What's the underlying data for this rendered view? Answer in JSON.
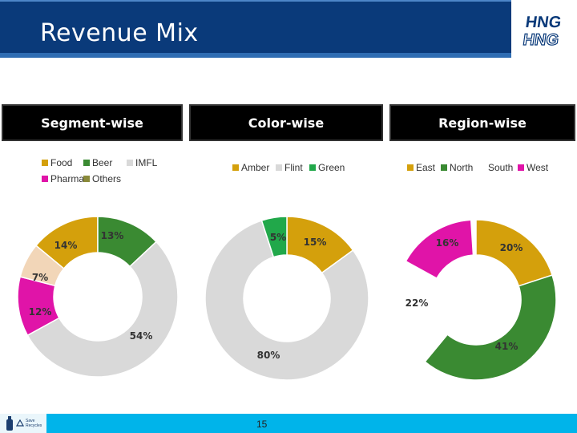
{
  "header": {
    "title": "Revenue Mix",
    "logo_text_top": "HNG",
    "logo_text_bottom": "HNG"
  },
  "sections": {
    "segment": "Segment-wise",
    "color": "Color-wise",
    "region": "Region-wise"
  },
  "colors": {
    "title_bar": "#0a3a7a",
    "footer": "#00b4ea",
    "gold": "#d4a00c",
    "green": "#3a8a32",
    "grey": "#d9d9d9",
    "pink": "#e014a8",
    "peach": "#f2d6b8",
    "olive": "#8a8a3a"
  },
  "chart_data": [
    {
      "type": "pie",
      "style": "donut",
      "categories": [
        "Food",
        "Beer",
        "IMFL",
        "Pharma",
        "Others"
      ],
      "values": [
        14,
        13,
        54,
        12,
        7
      ],
      "labels": [
        "14%",
        "13%",
        "54%",
        "12%",
        "7%"
      ],
      "colors": [
        "#d4a00c",
        "#3a8a32",
        "#d9d9d9",
        "#e014a8",
        "#f2d6b8"
      ],
      "legend_colors": [
        "#d4a00c",
        "#3a8a32",
        "#d9d9d9",
        "#e014a8",
        "#8a8a3a"
      ],
      "legend": "top"
    },
    {
      "type": "pie",
      "style": "donut",
      "categories": [
        "Amber",
        "Flint",
        "Green"
      ],
      "values": [
        15,
        80,
        5
      ],
      "labels": [
        "15%",
        "80%",
        "5%"
      ],
      "colors": [
        "#d4a00c",
        "#d9d9d9",
        "#21a84a"
      ],
      "legend": "top"
    },
    {
      "type": "pie",
      "style": "donut",
      "categories": [
        "East",
        "North",
        "South",
        "West"
      ],
      "values": [
        20,
        41,
        22,
        16
      ],
      "labels": [
        "20%",
        "41%",
        "22%",
        "16%"
      ],
      "colors": [
        "#d4a00c",
        "#3a8a32",
        "#ffffff",
        "#e014a8"
      ],
      "legend": "top"
    }
  ],
  "footer": {
    "page_number": "15",
    "logo_line1": "Save",
    "logo_line2": "Recycles"
  }
}
